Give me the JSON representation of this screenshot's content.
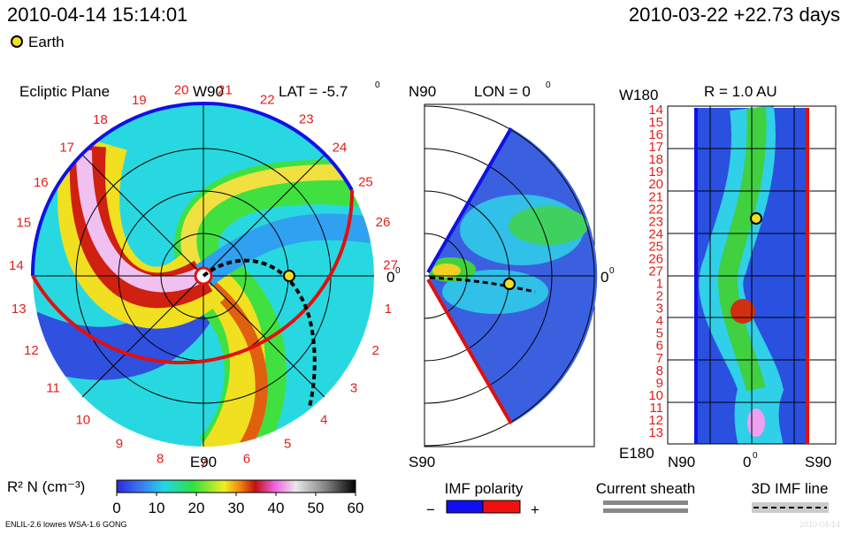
{
  "header": {
    "time": "2010-04-14 15:14:01",
    "reference": "2010-03-22 +22.73 days"
  },
  "legend": {
    "earth": "Earth"
  },
  "ecliptic": {
    "title": "Ecliptic Plane",
    "top": "W90",
    "lat": "LAT = -5.7",
    "lat_sup": "0",
    "right": "0",
    "right_sup": "0",
    "bottom": "E90",
    "longitudes": [
      "1",
      "2",
      "3",
      "4",
      "5",
      "6",
      "7",
      "8",
      "9",
      "10",
      "11",
      "12",
      "13",
      "14",
      "15",
      "16",
      "17",
      "18",
      "19",
      "20",
      "21",
      "22",
      "23",
      "24",
      "25",
      "26",
      "27"
    ]
  },
  "meridional": {
    "top": "N90",
    "lon": "LON = 0",
    "lon_sup": "0",
    "right": "0",
    "right_sup": "0",
    "bottom": "S90"
  },
  "radial": {
    "top_left": "W180",
    "title": "R = 1.0 AU",
    "bottom_left": "E180",
    "x_left": "N90",
    "x_mid": "0",
    "x_mid_sup": "0",
    "x_right": "S90",
    "longitudes": [
      "14",
      "15",
      "16",
      "17",
      "18",
      "19",
      "20",
      "21",
      "22",
      "23",
      "24",
      "25",
      "26",
      "27",
      "1",
      "2",
      "3",
      "4",
      "5",
      "6",
      "7",
      "8",
      "9",
      "10",
      "11",
      "12",
      "13"
    ]
  },
  "colorbar": {
    "label": "R² N (cm⁻³)",
    "range": [
      0,
      60
    ],
    "ticks": [
      0,
      10,
      20,
      30,
      40,
      50,
      60
    ]
  },
  "imf": {
    "title": "IMF polarity",
    "minus": "−",
    "plus": "+"
  },
  "sheath": {
    "title": "Current sheath"
  },
  "imf_line": {
    "title": "3D IMF line"
  },
  "footer": {
    "model": "ENLIL-2.6 lowres WSA-1.6 GONG",
    "date": "2010-04-14"
  }
}
